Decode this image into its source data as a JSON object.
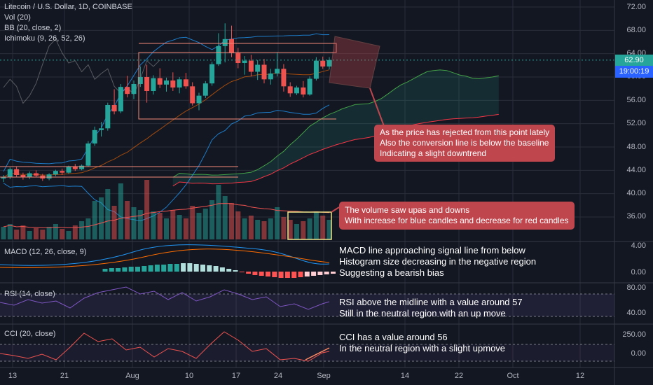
{
  "header": {
    "symbol": "Litecoin / U.S. Dollar, 1D, COINBASE",
    "indicators": [
      "Vol (20)",
      "BB (20, close, 2)",
      "Ichimoku (9, 26, 52, 26)"
    ]
  },
  "price_axis": {
    "labels": [
      "72.00",
      "68.00",
      "64.00",
      "60.00",
      "56.00",
      "52.00",
      "48.00",
      "44.00",
      "40.00",
      "36.00"
    ],
    "current_price": "62.90",
    "countdown": "19:00:19",
    "current_price_color": "#26a69a",
    "countdown_color": "#2962ff"
  },
  "macd_pane": {
    "label": "MACD (12, 26, close, 9)",
    "axis": [
      "4.00",
      "0.00"
    ]
  },
  "rsi_pane": {
    "label": "RSI (14, close)",
    "axis": [
      "80.00",
      "40.00"
    ]
  },
  "cci_pane": {
    "label": "CCI (20, close)",
    "axis": [
      "250.00",
      "0.00"
    ]
  },
  "time_axis": [
    "13",
    "21",
    "Aug",
    "10",
    "17",
    "24",
    "Sep",
    "14",
    "22",
    "Oct",
    "12"
  ],
  "annotations": {
    "price_callout": [
      "As the price has rejected from this point lately",
      "Also the conversion line is below the baseline",
      "Indicating a slight downtrend"
    ],
    "volume_callout": [
      "The volume saw upas and downs",
      "With increase for blue candles and decrease for red candles"
    ],
    "macd_note": [
      "MACD line approaching signal line from below",
      "Histogram size decreasing in the negative region",
      "Suggesting a bearish bias"
    ],
    "rsi_note": [
      "RSI above the midline with a value around 57",
      "Still in the neutral region with an up move"
    ],
    "cci_note": [
      "CCI has a value around 56",
      "In the neutral region with a slight upmove"
    ]
  },
  "colors": {
    "background": "#131722",
    "bull": "#26a69a",
    "bear": "#ef5350",
    "callout": "#c0464e",
    "grid": "#2a2e39"
  },
  "chart_data": {
    "type": "candlestick",
    "series": [
      {
        "name": "LTCUSD",
        "ohlc": [
          [
            42.6,
            43.2,
            42.0,
            42.8
          ],
          [
            42.8,
            44.5,
            42.5,
            44.2
          ],
          [
            44.2,
            44.6,
            42.9,
            43.2
          ],
          [
            43.2,
            43.6,
            42.4,
            42.9
          ],
          [
            42.9,
            43.8,
            42.5,
            43.5
          ],
          [
            43.5,
            44.0,
            42.8,
            43.1
          ],
          [
            43.1,
            43.4,
            42.2,
            42.6
          ],
          [
            42.6,
            43.5,
            42.3,
            43.3
          ],
          [
            43.3,
            44.1,
            43.0,
            43.9
          ],
          [
            43.9,
            44.3,
            43.2,
            43.6
          ],
          [
            43.6,
            44.8,
            43.4,
            44.6
          ],
          [
            44.6,
            45.1,
            43.9,
            44.2
          ],
          [
            44.2,
            45.0,
            44.0,
            44.8
          ],
          [
            44.8,
            49.0,
            44.6,
            48.6
          ],
          [
            48.6,
            51.5,
            48.2,
            50.9
          ],
          [
            50.9,
            52.3,
            49.8,
            51.2
          ],
          [
            51.2,
            55.6,
            50.8,
            55.2
          ],
          [
            55.2,
            57.9,
            53.6,
            54.1
          ],
          [
            54.1,
            58.8,
            53.8,
            58.3
          ],
          [
            58.3,
            60.2,
            56.5,
            57.1
          ],
          [
            57.1,
            59.4,
            56.2,
            58.8
          ],
          [
            58.8,
            61.8,
            58.3,
            60.0
          ],
          [
            60.0,
            62.1,
            55.6,
            57.6
          ],
          [
            57.6,
            60.3,
            57.0,
            59.8
          ],
          [
            59.8,
            61.5,
            58.1,
            58.7
          ],
          [
            58.7,
            59.9,
            57.5,
            59.4
          ],
          [
            59.4,
            60.8,
            57.6,
            58.2
          ],
          [
            58.2,
            60.0,
            57.2,
            59.6
          ],
          [
            59.6,
            60.7,
            58.0,
            58.4
          ],
          [
            58.4,
            59.1,
            55.1,
            55.5
          ],
          [
            55.5,
            57.3,
            54.3,
            56.8
          ],
          [
            56.8,
            59.3,
            56.4,
            58.9
          ],
          [
            58.9,
            62.6,
            58.5,
            62.2
          ],
          [
            62.2,
            67.5,
            61.9,
            65.3
          ],
          [
            65.3,
            69.2,
            62.5,
            66.5
          ],
          [
            66.5,
            68.8,
            63.4,
            64.1
          ],
          [
            64.1,
            65.0,
            61.5,
            62.4
          ],
          [
            62.4,
            63.6,
            60.4,
            62.8
          ],
          [
            62.8,
            63.8,
            60.1,
            60.9
          ],
          [
            60.9,
            62.9,
            59.5,
            62.1
          ],
          [
            62.1,
            63.1,
            58.9,
            59.6
          ],
          [
            59.6,
            61.4,
            58.7,
            60.6
          ],
          [
            60.6,
            64.2,
            60.1,
            61.4
          ],
          [
            61.4,
            62.2,
            57.5,
            58.4
          ],
          [
            58.4,
            59.1,
            56.6,
            57.2
          ],
          [
            57.2,
            58.5,
            56.9,
            58.2
          ],
          [
            58.2,
            59.3,
            56.5,
            57.0
          ],
          [
            57.0,
            60.1,
            56.8,
            59.7
          ],
          [
            59.7,
            63.4,
            59.4,
            62.8
          ],
          [
            62.8,
            63.5,
            61.4,
            61.8
          ],
          [
            61.8,
            63.4,
            61.3,
            62.9
          ]
        ]
      }
    ]
  }
}
